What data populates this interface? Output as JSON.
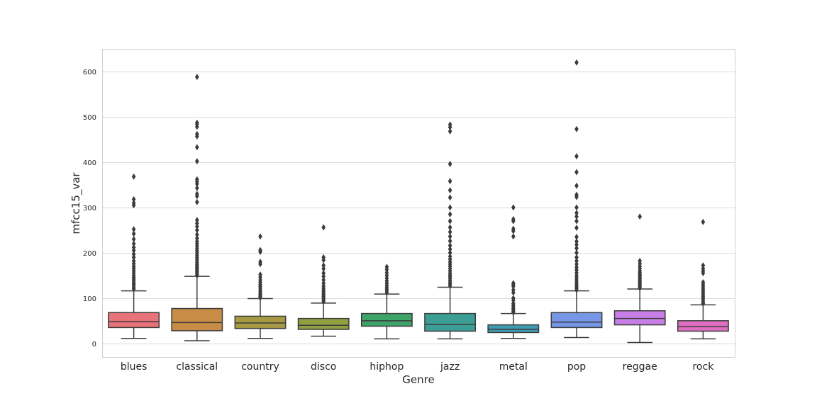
{
  "chart_data": {
    "type": "box",
    "xlabel": "Genre",
    "ylabel": "mfcc15_var",
    "ylim": [
      -30,
      650
    ],
    "yticks": [
      0,
      100,
      200,
      300,
      400,
      500,
      600
    ],
    "grid": true,
    "categories": [
      "blues",
      "classical",
      "country",
      "disco",
      "hiphop",
      "jazz",
      "metal",
      "pop",
      "reggae",
      "rock"
    ],
    "colors": [
      "#e8737a",
      "#c78c45",
      "#a89a45",
      "#8fa040",
      "#3ea368",
      "#3d9e96",
      "#3f9bb0",
      "#7696e6",
      "#c77ee6",
      "#de6ec0"
    ],
    "boxes": [
      {
        "whislo": 11,
        "q1": 35,
        "med": 48,
        "q3": 68,
        "whishi": 116,
        "fliers": [
          120,
          123,
          127,
          131,
          134,
          138,
          142,
          146,
          150,
          155,
          160,
          165,
          170,
          176,
          182,
          190,
          197,
          205,
          212,
          220,
          230,
          242,
          252,
          305,
          310,
          318,
          368
        ]
      },
      {
        "whislo": 6,
        "q1": 28,
        "med": 46,
        "q3": 77,
        "whishi": 148,
        "fliers": [
          150,
          153,
          156,
          159,
          162,
          165,
          168,
          171,
          174,
          178,
          182,
          186,
          190,
          195,
          200,
          205,
          210,
          215,
          220,
          225,
          232,
          240,
          250,
          258,
          265,
          272,
          312,
          325,
          330,
          343,
          352,
          357,
          362,
          402,
          433,
          457,
          462,
          478,
          484,
          487,
          588
        ]
      },
      {
        "whislo": 11,
        "q1": 33,
        "med": 45,
        "q3": 60,
        "whishi": 99,
        "fliers": [
          101,
          104,
          107,
          110,
          114,
          118,
          122,
          126,
          130,
          135,
          140,
          146,
          152,
          175,
          180,
          202,
          206,
          236
        ]
      },
      {
        "whislo": 16,
        "q1": 31,
        "med": 40,
        "q3": 55,
        "whishi": 89,
        "fliers": [
          92,
          95,
          98,
          101,
          104,
          107,
          110,
          114,
          118,
          122,
          127,
          133,
          140,
          148,
          155,
          165,
          172,
          184,
          190,
          256
        ]
      },
      {
        "whislo": 10,
        "q1": 38,
        "med": 50,
        "q3": 66,
        "whishi": 109,
        "fliers": [
          112,
          116,
          120,
          124,
          128,
          133,
          138,
          144,
          150,
          156,
          163,
          169
        ]
      },
      {
        "whislo": 10,
        "q1": 27,
        "med": 42,
        "q3": 66,
        "whishi": 124,
        "fliers": [
          127,
          131,
          135,
          139,
          143,
          147,
          151,
          155,
          160,
          165,
          170,
          175,
          180,
          186,
          192,
          200,
          208,
          216,
          226,
          236,
          246,
          256,
          270,
          285,
          300,
          322,
          338,
          358,
          396,
          468,
          477,
          483
        ]
      },
      {
        "whislo": 11,
        "q1": 24,
        "med": 31,
        "q3": 41,
        "whishi": 66,
        "fliers": [
          68,
          71,
          74,
          77,
          80,
          84,
          88,
          95,
          100,
          112,
          118,
          126,
          130,
          133,
          236,
          248,
          253,
          270,
          274,
          300
        ]
      },
      {
        "whislo": 13,
        "q1": 35,
        "med": 47,
        "q3": 68,
        "whishi": 116,
        "fliers": [
          118,
          122,
          126,
          130,
          135,
          140,
          145,
          150,
          156,
          162,
          168,
          175,
          182,
          190,
          200,
          210,
          218,
          225,
          235,
          255,
          270,
          280,
          288,
          300,
          323,
          328,
          348,
          378,
          413,
          473,
          620
        ]
      },
      {
        "whislo": 2,
        "q1": 41,
        "med": 55,
        "q3": 72,
        "whishi": 120,
        "fliers": [
          122,
          125,
          128,
          131,
          134,
          137,
          140,
          143,
          146,
          149,
          152,
          156,
          160,
          165,
          170,
          176,
          182,
          280
        ]
      },
      {
        "whislo": 10,
        "q1": 27,
        "med": 37,
        "q3": 50,
        "whishi": 85,
        "fliers": [
          88,
          92,
          96,
          100,
          104,
          108,
          112,
          116,
          120,
          125,
          130,
          135,
          155,
          160,
          165,
          172,
          268
        ]
      }
    ]
  }
}
